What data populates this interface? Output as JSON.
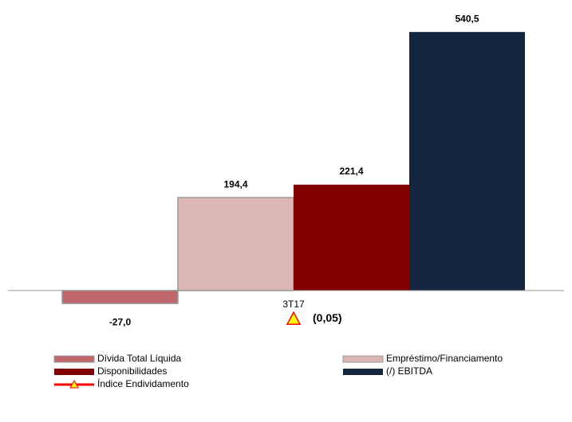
{
  "chart_data": {
    "type": "bar",
    "categories": [
      "3T17"
    ],
    "ylim": [
      -100,
      600
    ],
    "y2lim": [
      -0.1,
      0.75
    ],
    "legend": "bottom",
    "series": [
      {
        "name": "Dívida Total Líquida",
        "color": "#c0676b",
        "values": [
          -27.0
        ],
        "value_labels": [
          "-27,0"
        ]
      },
      {
        "name": "Empréstimo/Financiamento",
        "color": "#dcb6b4",
        "values": [
          194.4
        ],
        "value_labels": [
          "194,4"
        ]
      },
      {
        "name": "Disponibilidades",
        "color": "#800000",
        "values": [
          221.4
        ],
        "value_labels": [
          "221,4"
        ]
      },
      {
        "name": "(/) EBITDA",
        "color": "#13253f",
        "values": [
          540.5
        ],
        "value_labels": [
          "540,5"
        ]
      },
      {
        "name": "Índice Endividamento",
        "type": "line",
        "axis": "y2",
        "color": "#ff0000",
        "marker_color": "#ffff00",
        "values": [
          -0.05
        ],
        "value_labels": [
          "(0,05)"
        ]
      }
    ]
  }
}
